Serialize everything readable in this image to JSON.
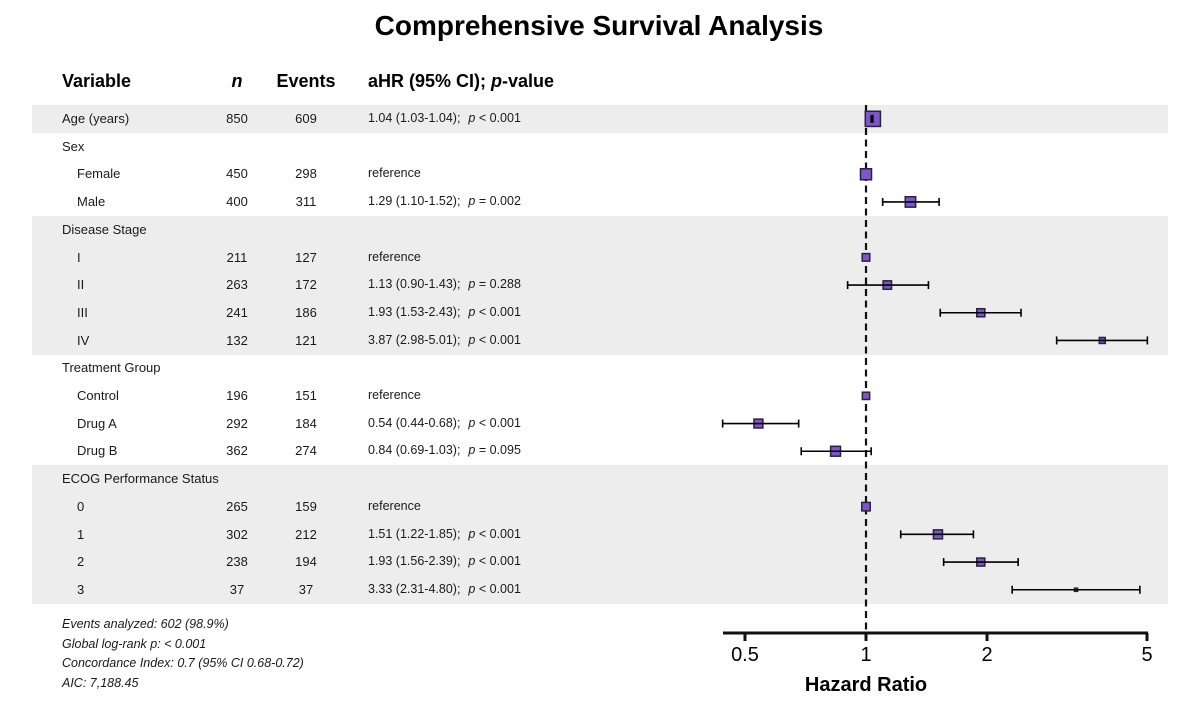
{
  "title": "Comprehensive Survival Analysis",
  "columns": {
    "variable": "Variable",
    "n": "n",
    "events": "Events",
    "ahr_pre": "aHR (95% CI); ",
    "ahr_p": "p",
    "ahr_post": "-value"
  },
  "chart_data": {
    "type": "forest",
    "x_axis": {
      "scale": "log",
      "label": "Hazard Ratio",
      "range": [
        0.44,
        5.03
      ],
      "ticks": [
        {
          "v": 0.5,
          "label": "0.5"
        },
        {
          "v": 1,
          "label": "1"
        },
        {
          "v": 2,
          "label": "2"
        },
        {
          "v": 5,
          "label": "5"
        }
      ]
    },
    "reference_line": 1,
    "rows": [
      {
        "label": "Age (years)",
        "indent": 0,
        "band": true,
        "n": 850,
        "events": 609,
        "est": 1.04,
        "lo": 1.03,
        "hi": 1.04,
        "ci_text": "1.04 (1.03-1.04);",
        "p_text": "p < 0.001"
      },
      {
        "label": "Sex",
        "group": true,
        "band": false
      },
      {
        "label": "Female",
        "indent": 1,
        "band": false,
        "n": 450,
        "events": 298,
        "reference": true,
        "est": 1.0,
        "ci_text": "reference"
      },
      {
        "label": "Male",
        "indent": 1,
        "band": false,
        "n": 400,
        "events": 311,
        "est": 1.29,
        "lo": 1.1,
        "hi": 1.52,
        "ci_text": "1.29 (1.10-1.52);",
        "p_text": "p = 0.002"
      },
      {
        "label": "Disease Stage",
        "group": true,
        "band": true
      },
      {
        "label": "I",
        "indent": 1,
        "band": true,
        "n": 211,
        "events": 127,
        "reference": true,
        "est": 1.0,
        "ci_text": "reference"
      },
      {
        "label": "II",
        "indent": 1,
        "band": true,
        "n": 263,
        "events": 172,
        "est": 1.13,
        "lo": 0.9,
        "hi": 1.43,
        "ci_text": "1.13 (0.90-1.43);",
        "p_text": "p = 0.288"
      },
      {
        "label": "III",
        "indent": 1,
        "band": true,
        "n": 241,
        "events": 186,
        "est": 1.93,
        "lo": 1.53,
        "hi": 2.43,
        "ci_text": "1.93 (1.53-2.43);",
        "p_text": "p < 0.001"
      },
      {
        "label": "IV",
        "indent": 1,
        "band": true,
        "n": 132,
        "events": 121,
        "est": 3.87,
        "lo": 2.98,
        "hi": 5.01,
        "ci_text": "3.87 (2.98-5.01);",
        "p_text": "p < 0.001"
      },
      {
        "label": "Treatment Group",
        "group": true,
        "band": false
      },
      {
        "label": "Control",
        "indent": 1,
        "band": false,
        "n": 196,
        "events": 151,
        "reference": true,
        "est": 1.0,
        "ci_text": "reference"
      },
      {
        "label": "Drug A",
        "indent": 1,
        "band": false,
        "n": 292,
        "events": 184,
        "est": 0.54,
        "lo": 0.44,
        "hi": 0.68,
        "ci_text": "0.54 (0.44-0.68);",
        "p_text": "p < 0.001"
      },
      {
        "label": "Drug B",
        "indent": 1,
        "band": false,
        "n": 362,
        "events": 274,
        "est": 0.84,
        "lo": 0.69,
        "hi": 1.03,
        "ci_text": "0.84 (0.69-1.03);",
        "p_text": "p = 0.095"
      },
      {
        "label": "ECOG Performance Status",
        "group": true,
        "band": true
      },
      {
        "label": "0",
        "indent": 1,
        "band": true,
        "n": 265,
        "events": 159,
        "reference": true,
        "est": 1.0,
        "ci_text": "reference"
      },
      {
        "label": "1",
        "indent": 1,
        "band": true,
        "n": 302,
        "events": 212,
        "est": 1.51,
        "lo": 1.22,
        "hi": 1.85,
        "ci_text": "1.51 (1.22-1.85);",
        "p_text": "p < 0.001"
      },
      {
        "label": "2",
        "indent": 1,
        "band": true,
        "n": 238,
        "events": 194,
        "est": 1.93,
        "lo": 1.56,
        "hi": 2.39,
        "ci_text": "1.93 (1.56-2.39);",
        "p_text": "p < 0.001"
      },
      {
        "label": "3",
        "indent": 1,
        "band": true,
        "n": 37,
        "events": 37,
        "est": 3.33,
        "lo": 2.31,
        "hi": 4.8,
        "ci_text": "3.33 (2.31-4.80);",
        "p_text": "p < 0.001"
      }
    ]
  },
  "footer": [
    "Events analyzed: 602 (98.9%)",
    "Global log-rank p: < 0.001",
    "Concordance Index: 0.7 (95% CI 0.68-0.72)",
    "AIC: 7,188.45"
  ],
  "colors": {
    "marker_fill": "#7D57C8",
    "marker_border": "#2A2040",
    "band": "#EDEDED",
    "line": "#111111",
    "text": "#1A1A1A"
  }
}
